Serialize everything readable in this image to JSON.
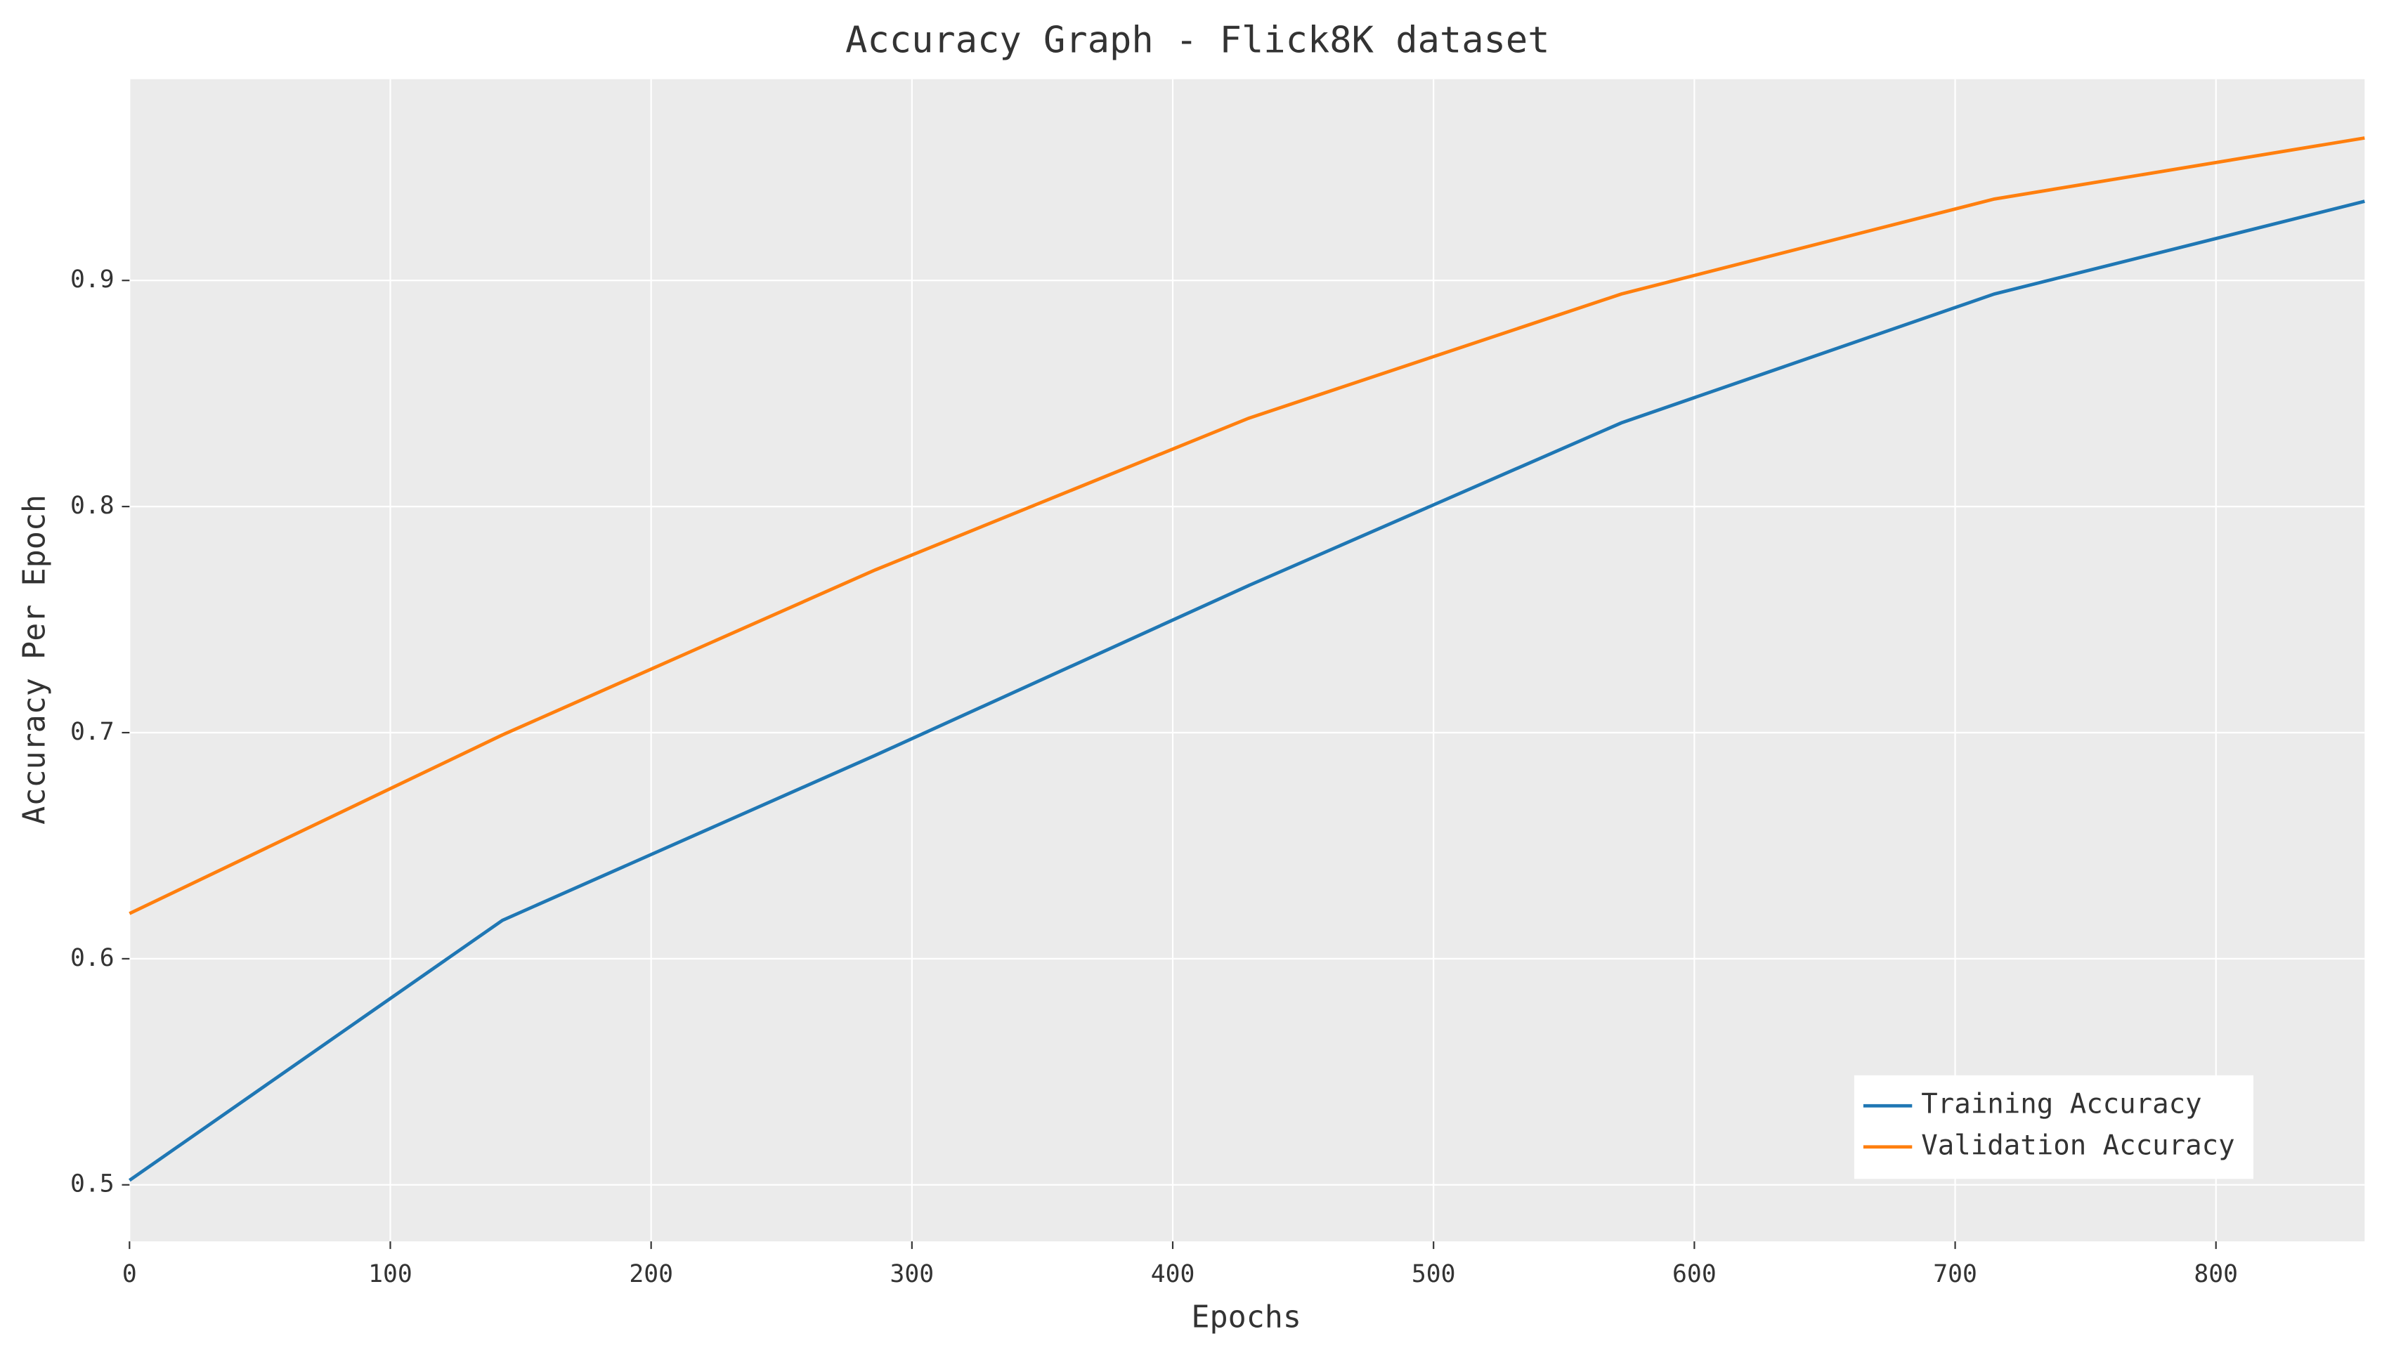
{
  "chart_data": {
    "type": "line",
    "title": "Accuracy Graph - Flick8K dataset",
    "x_label": "Epochs",
    "y_label": "Accuracy Per Epoch",
    "x": [
      0,
      143,
      286,
      429,
      572,
      715,
      857
    ],
    "series": [
      {
        "name": "Training Accuracy",
        "color": "#1f77b4",
        "values": [
          0.502,
          0.617,
          0.69,
          0.765,
          0.837,
          0.894,
          0.935
        ]
      },
      {
        "name": "Validation Accuracy",
        "color": "#ff7f0e",
        "values": [
          0.62,
          0.699,
          0.772,
          0.839,
          0.894,
          0.936,
          0.963
        ]
      }
    ],
    "xlim": [
      0,
      857
    ],
    "ylim": [
      0.475,
      0.989
    ],
    "xticks": [
      0,
      100,
      200,
      300,
      400,
      500,
      600,
      700,
      800
    ],
    "yticks": [
      0.5,
      0.6,
      0.7,
      0.8,
      0.9
    ],
    "grid": true,
    "legend": "lower right"
  }
}
